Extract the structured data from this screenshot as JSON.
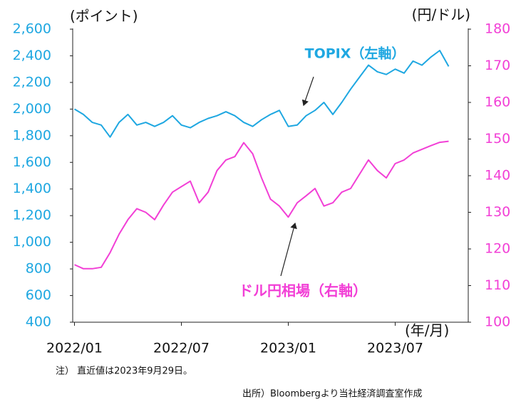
{
  "chart_data": {
    "type": "line",
    "y_unit_label": "(ポイント)",
    "y2_unit_label": "(円/ドル)",
    "x_unit_label": "(年/月)",
    "annotations": [
      "TOPIX（左軸）",
      "ドル円相場（右軸）"
    ],
    "note": "注） 直近値は2023年9月29日。",
    "source": "出所）Bloombergより当社経済調査室作成",
    "x": [
      0,
      0.5,
      1,
      1.5,
      2,
      2.5,
      3,
      3.5,
      4,
      4.5,
      5,
      5.5,
      6,
      6.5,
      7,
      7.5,
      8,
      8.5,
      9,
      9.5,
      10,
      10.5,
      11,
      11.5,
      12,
      12.5,
      13,
      13.5,
      14,
      14.5,
      15,
      15.5,
      16,
      16.5,
      17,
      17.5,
      18,
      18.5,
      19,
      19.5,
      20,
      20.5,
      21
    ],
    "xlim": [
      -0.1,
      22.1
    ],
    "xticks": [
      {
        "value": 0,
        "label": "2022/01"
      },
      {
        "value": 6,
        "label": "2022/07"
      },
      {
        "value": 12,
        "label": "2023/01"
      },
      {
        "value": 18,
        "label": "2023/07"
      }
    ],
    "ylim": [
      400,
      2600
    ],
    "yticks": [
      {
        "value": 400,
        "label": "400"
      },
      {
        "value": 600,
        "label": "600"
      },
      {
        "value": 800,
        "label": "800"
      },
      {
        "value": 1000,
        "label": "1,000"
      },
      {
        "value": 1200,
        "label": "1,200"
      },
      {
        "value": 1400,
        "label": "1,400"
      },
      {
        "value": 1600,
        "label": "1,600"
      },
      {
        "value": 1800,
        "label": "1,800"
      },
      {
        "value": 2000,
        "label": "2,000"
      },
      {
        "value": 2200,
        "label": "2,200"
      },
      {
        "value": 2400,
        "label": "2,400"
      },
      {
        "value": 2600,
        "label": "2,600"
      }
    ],
    "y2lim": [
      100,
      180
    ],
    "y2ticks": [
      100,
      110,
      120,
      130,
      140,
      150,
      160,
      170,
      180
    ],
    "series": [
      {
        "name": "TOPIX",
        "color": "#1ea7e1",
        "axis": "y",
        "values": [
          2000,
          1960,
          1900,
          1880,
          1790,
          1900,
          1960,
          1880,
          1900,
          1870,
          1900,
          1950,
          1880,
          1860,
          1900,
          1930,
          1950,
          1980,
          1950,
          1900,
          1870,
          1920,
          1960,
          1990,
          1870,
          1880,
          1950,
          1990,
          2050,
          1960,
          2050,
          2150,
          2240,
          2330,
          2280,
          2260,
          2300,
          2270,
          2360,
          2330,
          2390,
          2440,
          2320
        ]
      },
      {
        "name": "ドル円相場",
        "color": "#f23fd6",
        "axis": "y2",
        "values": [
          115.7,
          114.6,
          114.6,
          115,
          119,
          124,
          128,
          131,
          130,
          128,
          132,
          135.5,
          137,
          138.5,
          132.6,
          135.5,
          141.4,
          144.3,
          145.2,
          149,
          146,
          139.4,
          133.6,
          131.7,
          128.7,
          132.6,
          134.5,
          136.5,
          131.7,
          132.6,
          135.5,
          136.5,
          140.4,
          144.3,
          141.4,
          139.4,
          143.3,
          144.3,
          146.2,
          147.2,
          148.2,
          149.1,
          149.4
        ]
      }
    ]
  }
}
